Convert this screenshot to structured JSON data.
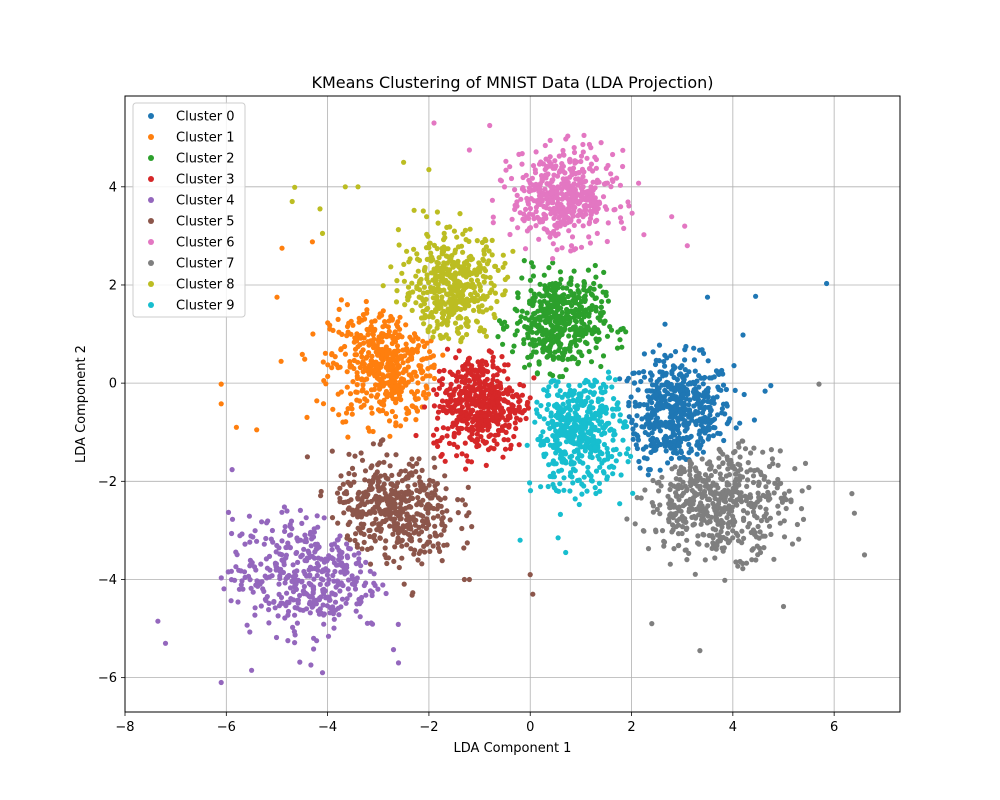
{
  "chart_data": {
    "type": "scatter",
    "title": "KMeans Clustering of MNIST Data (LDA Projection)",
    "xlabel": "LDA Component 1",
    "ylabel": "LDA Component 2",
    "xlim": [
      -8,
      7.3
    ],
    "ylim": [
      -6.7,
      5.85
    ],
    "xticks": [
      -8,
      -6,
      -4,
      -2,
      0,
      2,
      4,
      6
    ],
    "yticks": [
      -6,
      -4,
      -2,
      0,
      2,
      4
    ],
    "grid": true,
    "legend_position": "top-left",
    "series": [
      {
        "name": "Cluster 0",
        "color": "#1f77b4",
        "center": [
          2.9,
          -0.6
        ],
        "spread": [
          0.55,
          0.55
        ],
        "count": 520,
        "outliers": [
          [
            5.85,
            2.03
          ],
          [
            4.45,
            1.77
          ],
          [
            4.2,
            0.98
          ],
          [
            4.75,
            -0.05
          ],
          [
            3.5,
            1.75
          ],
          [
            1.8,
            1.1
          ]
        ]
      },
      {
        "name": "Cluster 1",
        "color": "#ff7f0e",
        "center": [
          -2.85,
          0.35
        ],
        "spread": [
          0.55,
          0.6
        ],
        "count": 480,
        "outliers": [
          [
            -6.1,
            -0.02
          ],
          [
            -6.1,
            -0.42
          ],
          [
            -5.8,
            -0.9
          ],
          [
            -5.4,
            -0.95
          ],
          [
            -4.9,
            2.75
          ],
          [
            -4.3,
            2.88
          ],
          [
            -5.0,
            1.75
          ],
          [
            -3.6,
            -1.1
          ]
        ]
      },
      {
        "name": "Cluster 2",
        "color": "#2ca02c",
        "center": [
          0.55,
          1.25
        ],
        "spread": [
          0.45,
          0.5
        ],
        "count": 480,
        "outliers": []
      },
      {
        "name": "Cluster 3",
        "color": "#d62728",
        "center": [
          -1.0,
          -0.4
        ],
        "spread": [
          0.45,
          0.5
        ],
        "count": 480,
        "outliers": []
      },
      {
        "name": "Cluster 4",
        "color": "#9467bd",
        "center": [
          -4.4,
          -3.9
        ],
        "spread": [
          0.75,
          0.6
        ],
        "count": 420,
        "outliers": [
          [
            -7.35,
            -4.85
          ],
          [
            -7.2,
            -5.3
          ],
          [
            -6.1,
            -6.1
          ],
          [
            -5.5,
            -5.85
          ],
          [
            -2.6,
            -5.7
          ],
          [
            -4.1,
            -5.9
          ]
        ]
      },
      {
        "name": "Cluster 5",
        "color": "#8c564b",
        "center": [
          -2.7,
          -2.6
        ],
        "spread": [
          0.6,
          0.55
        ],
        "count": 450,
        "outliers": [
          [
            0.0,
            -3.9
          ],
          [
            0.05,
            -4.3
          ],
          [
            -1.2,
            -4.0
          ],
          [
            -1.3,
            -4.0
          ],
          [
            -4.4,
            -1.5
          ]
        ]
      },
      {
        "name": "Cluster 6",
        "color": "#e377c2",
        "center": [
          0.65,
          3.8
        ],
        "spread": [
          0.5,
          0.45
        ],
        "count": 480,
        "outliers": [
          [
            -1.9,
            5.3
          ],
          [
            -0.8,
            5.25
          ],
          [
            1.4,
            4.9
          ],
          [
            3.1,
            2.8
          ],
          [
            3.05,
            3.2
          ],
          [
            -1.2,
            4.75
          ]
        ]
      },
      {
        "name": "Cluster 7",
        "color": "#7f7f7f",
        "center": [
          3.7,
          -2.4
        ],
        "spread": [
          0.7,
          0.55
        ],
        "count": 520,
        "outliers": [
          [
            5.7,
            -0.02
          ],
          [
            6.35,
            -2.25
          ],
          [
            6.4,
            -2.65
          ],
          [
            6.6,
            -3.5
          ],
          [
            3.35,
            -5.45
          ],
          [
            2.4,
            -4.9
          ],
          [
            5.0,
            -4.55
          ]
        ]
      },
      {
        "name": "Cluster 8",
        "color": "#bcbd22",
        "center": [
          -1.55,
          1.95
        ],
        "spread": [
          0.5,
          0.55
        ],
        "count": 460,
        "outliers": [
          [
            -4.7,
            3.7
          ],
          [
            -4.65,
            3.99
          ],
          [
            -3.65,
            4.0
          ],
          [
            -3.4,
            4.0
          ],
          [
            -2.5,
            4.5
          ],
          [
            -2.0,
            4.35
          ],
          [
            -4.15,
            3.55
          ],
          [
            -4.1,
            3.05
          ]
        ]
      },
      {
        "name": "Cluster 9",
        "color": "#17becf",
        "center": [
          0.95,
          -1.0
        ],
        "spread": [
          0.45,
          0.6
        ],
        "count": 480,
        "outliers": [
          [
            0.7,
            -3.45
          ],
          [
            -0.2,
            -3.2
          ],
          [
            0.55,
            -3.15
          ]
        ]
      }
    ]
  }
}
